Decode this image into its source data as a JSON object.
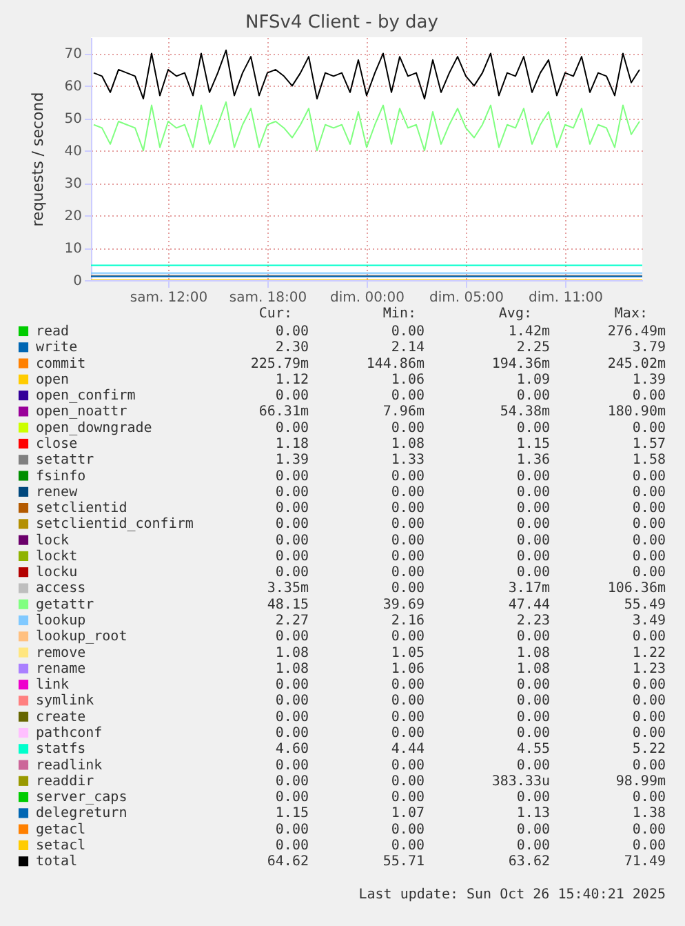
{
  "chart_data": {
    "type": "line",
    "title": "NFSv4 Client - by day",
    "ylabel": "requests / second",
    "xlim": [
      "2025-10-25T05:20",
      "2025-10-26T14:40"
    ],
    "ylim": [
      0,
      75
    ],
    "xticks": [
      {
        "value": "2025-10-25T10:00",
        "label": "sam. 12:00"
      },
      {
        "value": "2025-10-25T16:00",
        "label": "sam. 18:00"
      },
      {
        "value": "2025-10-25T22:00",
        "label": "dim. 00:00"
      },
      {
        "value": "2025-10-26T04:00",
        "label": "dim. 05:00"
      },
      {
        "value": "2025-10-26T10:00",
        "label": "dim. 11:00"
      }
    ],
    "yticks": [
      0,
      10,
      20,
      30,
      40,
      50,
      60,
      70
    ],
    "grid": true,
    "legend": "bottom",
    "x": [
      "2025-10-25T05:30",
      "2025-10-25T06:00",
      "2025-10-25T06:30",
      "2025-10-25T07:00",
      "2025-10-25T07:30",
      "2025-10-25T08:00",
      "2025-10-25T08:30",
      "2025-10-25T09:00",
      "2025-10-25T09:30",
      "2025-10-25T10:00",
      "2025-10-25T10:30",
      "2025-10-25T11:00",
      "2025-10-25T11:30",
      "2025-10-25T12:00",
      "2025-10-25T12:30",
      "2025-10-25T13:00",
      "2025-10-25T13:30",
      "2025-10-25T14:00",
      "2025-10-25T14:30",
      "2025-10-25T15:00",
      "2025-10-25T15:30",
      "2025-10-25T16:00",
      "2025-10-25T16:30",
      "2025-10-25T17:00",
      "2025-10-25T17:30",
      "2025-10-25T18:00",
      "2025-10-25T18:30",
      "2025-10-25T19:00",
      "2025-10-25T19:30",
      "2025-10-25T20:00",
      "2025-10-25T20:30",
      "2025-10-25T21:00",
      "2025-10-25T21:30",
      "2025-10-25T22:00",
      "2025-10-25T22:30",
      "2025-10-25T23:00",
      "2025-10-25T23:30",
      "2025-10-26T00:00",
      "2025-10-26T00:30",
      "2025-10-26T01:00",
      "2025-10-26T01:30",
      "2025-10-26T02:00",
      "2025-10-26T02:30",
      "2025-10-26T03:00",
      "2025-10-26T03:30",
      "2025-10-26T04:00",
      "2025-10-26T04:30",
      "2025-10-26T05:00",
      "2025-10-26T05:30",
      "2025-10-26T06:00",
      "2025-10-26T06:30",
      "2025-10-26T07:00",
      "2025-10-26T07:30",
      "2025-10-26T08:00",
      "2025-10-26T08:30",
      "2025-10-26T09:00",
      "2025-10-26T09:30",
      "2025-10-26T10:00",
      "2025-10-26T10:30",
      "2025-10-26T11:00",
      "2025-10-26T11:30",
      "2025-10-26T12:00",
      "2025-10-26T12:30",
      "2025-10-26T13:00",
      "2025-10-26T13:30",
      "2025-10-26T14:00",
      "2025-10-26T14:30"
    ],
    "series": [
      {
        "name": "read",
        "color": "#00cc00",
        "values": [
          null,
          null,
          null,
          null,
          null,
          null,
          null,
          null,
          null,
          null,
          null,
          null,
          null,
          null,
          null,
          null,
          null,
          null,
          null,
          null,
          null,
          null,
          null,
          null,
          null,
          null,
          null,
          null,
          null,
          null,
          null,
          null,
          null,
          null,
          null,
          null,
          null,
          null,
          null,
          null,
          null,
          null,
          null,
          null,
          null,
          null,
          null,
          null,
          null,
          null,
          null,
          null,
          null,
          null,
          null,
          null,
          null,
          null,
          null,
          null,
          null,
          null,
          null,
          null,
          null,
          null,
          null
        ]
      },
      {
        "name": "write",
        "color": "#0066b3",
        "values": [
          null,
          null,
          null,
          null,
          null,
          null,
          null,
          null,
          null,
          null,
          null,
          null,
          null,
          null,
          null,
          null,
          null,
          null,
          null,
          null,
          null,
          null,
          null,
          null,
          null,
          null,
          null,
          null,
          null,
          null,
          null,
          null,
          null,
          null,
          null,
          null,
          null,
          null,
          null,
          null,
          null,
          null,
          null,
          null,
          null,
          null,
          null,
          null,
          null,
          null,
          null,
          null,
          null,
          null,
          null,
          null,
          null,
          null,
          null,
          null,
          null,
          null,
          null,
          null,
          null,
          null,
          null
        ]
      },
      {
        "name": "commit",
        "color": "#ff8000",
        "values": [
          null,
          null,
          null,
          null,
          null,
          null,
          null,
          null,
          null,
          null,
          null,
          null,
          null,
          null,
          null,
          null,
          null,
          null,
          null,
          null,
          null,
          null,
          null,
          null,
          null,
          null,
          null,
          null,
          null,
          null,
          null,
          null,
          null,
          null,
          null,
          null,
          null,
          null,
          null,
          null,
          null,
          null,
          null,
          null,
          null,
          null,
          null,
          null,
          null,
          null,
          null,
          null,
          null,
          null,
          null,
          null,
          null,
          null,
          null,
          null,
          null,
          null,
          null,
          null,
          null,
          null,
          null
        ]
      },
      {
        "name": "open",
        "color": "#ffcc00",
        "values": [
          null,
          null,
          null,
          null,
          null,
          null,
          null,
          null,
          null,
          null,
          null,
          null,
          null,
          null,
          null,
          null,
          null,
          null,
          null,
          null,
          null,
          null,
          null,
          null,
          null,
          null,
          null,
          null,
          null,
          null,
          null,
          null,
          null,
          null,
          null,
          null,
          null,
          null,
          null,
          null,
          null,
          null,
          null,
          null,
          null,
          null,
          null,
          null,
          null,
          null,
          null,
          null,
          null,
          null,
          null,
          null,
          null,
          null,
          null,
          null,
          null,
          null,
          null,
          null,
          null,
          null,
          null
        ]
      },
      {
        "name": "open_confirm",
        "color": "#330099",
        "values": [
          null,
          null,
          null,
          null,
          null,
          null,
          null,
          null,
          null,
          null,
          null,
          null,
          null,
          null,
          null,
          null,
          null,
          null,
          null,
          null,
          null,
          null,
          null,
          null,
          null,
          null,
          null,
          null,
          null,
          null,
          null,
          null,
          null,
          null,
          null,
          null,
          null,
          null,
          null,
          null,
          null,
          null,
          null,
          null,
          null,
          null,
          null,
          null,
          null,
          null,
          null,
          null,
          null,
          null,
          null,
          null,
          null,
          null,
          null,
          null,
          null,
          null,
          null,
          null,
          null,
          null,
          null
        ]
      },
      {
        "name": "open_noattr",
        "color": "#990099",
        "values": [
          null,
          null,
          null,
          null,
          null,
          null,
          null,
          null,
          null,
          null,
          null,
          null,
          null,
          null,
          null,
          null,
          null,
          null,
          null,
          null,
          null,
          null,
          null,
          null,
          null,
          null,
          null,
          null,
          null,
          null,
          null,
          null,
          null,
          null,
          null,
          null,
          null,
          null,
          null,
          null,
          null,
          null,
          null,
          null,
          null,
          null,
          null,
          null,
          null,
          null,
          null,
          null,
          null,
          null,
          null,
          null,
          null,
          null,
          null,
          null,
          null,
          null,
          null,
          null,
          null,
          null,
          null
        ]
      },
      {
        "name": "open_downgrade",
        "color": "#ccff00",
        "values": [
          null,
          null,
          null,
          null,
          null,
          null,
          null,
          null,
          null,
          null,
          null,
          null,
          null,
          null,
          null,
          null,
          null,
          null,
          null,
          null,
          null,
          null,
          null,
          null,
          null,
          null,
          null,
          null,
          null,
          null,
          null,
          null,
          null,
          null,
          null,
          null,
          null,
          null,
          null,
          null,
          null,
          null,
          null,
          null,
          null,
          null,
          null,
          null,
          null,
          null,
          null,
          null,
          null,
          null,
          null,
          null,
          null,
          null,
          null,
          null,
          null,
          null,
          null,
          null,
          null,
          null,
          null
        ]
      },
      {
        "name": "close",
        "color": "#ff0000",
        "values": [
          null,
          null,
          null,
          null,
          null,
          null,
          null,
          null,
          null,
          null,
          null,
          null,
          null,
          null,
          null,
          null,
          null,
          null,
          null,
          null,
          null,
          null,
          null,
          null,
          null,
          null,
          null,
          null,
          null,
          null,
          null,
          null,
          null,
          null,
          null,
          null,
          null,
          null,
          null,
          null,
          null,
          null,
          null,
          null,
          null,
          null,
          null,
          null,
          null,
          null,
          null,
          null,
          null,
          null,
          null,
          null,
          null,
          null,
          null,
          null,
          null,
          null,
          null,
          null,
          null,
          null,
          null
        ]
      },
      {
        "name": "setattr",
        "color": "#808080",
        "x": [
          "2025-10-25T05:20",
          "2025-10-26T14:40"
        ],
        "values": [
          1.4,
          1.4
        ]
      },
      {
        "name": "fsinfo",
        "color": "#008f00",
        "values": [
          null,
          null,
          null,
          null,
          null,
          null,
          null,
          null,
          null,
          null,
          null,
          null,
          null,
          null,
          null,
          null,
          null,
          null,
          null,
          null,
          null,
          null,
          null,
          null,
          null,
          null,
          null,
          null,
          null,
          null,
          null,
          null,
          null,
          null,
          null,
          null,
          null,
          null,
          null,
          null,
          null,
          null,
          null,
          null,
          null,
          null,
          null,
          null,
          null,
          null,
          null,
          null,
          null,
          null,
          null,
          null,
          null,
          null,
          null,
          null,
          null,
          null,
          null,
          null,
          null,
          null,
          null
        ]
      },
      {
        "name": "renew",
        "color": "#00487d",
        "values": [
          null,
          null,
          null,
          null,
          null,
          null,
          null,
          null,
          null,
          null,
          null,
          null,
          null,
          null,
          null,
          null,
          null,
          null,
          null,
          null,
          null,
          null,
          null,
          null,
          null,
          null,
          null,
          null,
          null,
          null,
          null,
          null,
          null,
          null,
          null,
          null,
          null,
          null,
          null,
          null,
          null,
          null,
          null,
          null,
          null,
          null,
          null,
          null,
          null,
          null,
          null,
          null,
          null,
          null,
          null,
          null,
          null,
          null,
          null,
          null,
          null,
          null,
          null,
          null,
          null,
          null,
          null
        ]
      },
      {
        "name": "setclientid",
        "color": "#b35a00",
        "values": [
          null,
          null,
          null,
          null,
          null,
          null,
          null,
          null,
          null,
          null,
          null,
          null,
          null,
          null,
          null,
          null,
          null,
          null,
          null,
          null,
          null,
          null,
          null,
          null,
          null,
          null,
          null,
          null,
          null,
          null,
          null,
          null,
          null,
          null,
          null,
          null,
          null,
          null,
          null,
          null,
          null,
          null,
          null,
          null,
          null,
          null,
          null,
          null,
          null,
          null,
          null,
          null,
          null,
          null,
          null,
          null,
          null,
          null,
          null,
          null,
          null,
          null,
          null,
          null,
          null,
          null,
          null
        ]
      },
      {
        "name": "setclientid_confirm",
        "color": "#b38f00",
        "values": [
          null,
          null,
          null,
          null,
          null,
          null,
          null,
          null,
          null,
          null,
          null,
          null,
          null,
          null,
          null,
          null,
          null,
          null,
          null,
          null,
          null,
          null,
          null,
          null,
          null,
          null,
          null,
          null,
          null,
          null,
          null,
          null,
          null,
          null,
          null,
          null,
          null,
          null,
          null,
          null,
          null,
          null,
          null,
          null,
          null,
          null,
          null,
          null,
          null,
          null,
          null,
          null,
          null,
          null,
          null,
          null,
          null,
          null,
          null,
          null,
          null,
          null,
          null,
          null,
          null,
          null,
          null
        ]
      },
      {
        "name": "lock",
        "color": "#6b006b",
        "values": [
          null,
          null,
          null,
          null,
          null,
          null,
          null,
          null,
          null,
          null,
          null,
          null,
          null,
          null,
          null,
          null,
          null,
          null,
          null,
          null,
          null,
          null,
          null,
          null,
          null,
          null,
          null,
          null,
          null,
          null,
          null,
          null,
          null,
          null,
          null,
          null,
          null,
          null,
          null,
          null,
          null,
          null,
          null,
          null,
          null,
          null,
          null,
          null,
          null,
          null,
          null,
          null,
          null,
          null,
          null,
          null,
          null,
          null,
          null,
          null,
          null,
          null,
          null,
          null,
          null,
          null,
          null
        ]
      },
      {
        "name": "lockt",
        "color": "#8fb300",
        "values": [
          null,
          null,
          null,
          null,
          null,
          null,
          null,
          null,
          null,
          null,
          null,
          null,
          null,
          null,
          null,
          null,
          null,
          null,
          null,
          null,
          null,
          null,
          null,
          null,
          null,
          null,
          null,
          null,
          null,
          null,
          null,
          null,
          null,
          null,
          null,
          null,
          null,
          null,
          null,
          null,
          null,
          null,
          null,
          null,
          null,
          null,
          null,
          null,
          null,
          null,
          null,
          null,
          null,
          null,
          null,
          null,
          null,
          null,
          null,
          null,
          null,
          null,
          null,
          null,
          null,
          null,
          null
        ]
      },
      {
        "name": "locku",
        "color": "#b30000",
        "values": [
          null,
          null,
          null,
          null,
          null,
          null,
          null,
          null,
          null,
          null,
          null,
          null,
          null,
          null,
          null,
          null,
          null,
          null,
          null,
          null,
          null,
          null,
          null,
          null,
          null,
          null,
          null,
          null,
          null,
          null,
          null,
          null,
          null,
          null,
          null,
          null,
          null,
          null,
          null,
          null,
          null,
          null,
          null,
          null,
          null,
          null,
          null,
          null,
          null,
          null,
          null,
          null,
          null,
          null,
          null,
          null,
          null,
          null,
          null,
          null,
          null,
          null,
          null,
          null,
          null,
          null,
          null
        ]
      },
      {
        "name": "access",
        "color": "#bebebe",
        "values": [
          null,
          null,
          null,
          null,
          null,
          null,
          null,
          null,
          null,
          null,
          null,
          null,
          null,
          null,
          null,
          null,
          null,
          null,
          null,
          null,
          null,
          null,
          null,
          null,
          null,
          null,
          null,
          null,
          null,
          null,
          null,
          null,
          null,
          null,
          null,
          null,
          null,
          null,
          null,
          null,
          null,
          null,
          null,
          null,
          null,
          null,
          null,
          null,
          null,
          null,
          null,
          null,
          null,
          null,
          null,
          null,
          null,
          null,
          null,
          null,
          null,
          null,
          null,
          null,
          null,
          null,
          null
        ]
      },
      {
        "name": "getattr",
        "color": "#80ff80",
        "values": [
          48,
          47,
          42,
          49,
          48,
          47,
          40,
          54,
          41,
          49,
          47,
          48,
          41,
          54,
          42,
          48,
          55,
          41,
          48,
          53,
          41,
          48,
          49,
          47,
          44,
          48,
          53,
          40,
          48,
          47,
          48,
          42,
          52,
          41,
          48,
          54,
          42,
          53,
          47,
          48,
          40,
          52,
          42,
          48,
          53,
          47,
          44,
          48,
          54,
          41,
          48,
          47,
          53,
          42,
          48,
          52,
          41,
          48,
          47,
          53,
          42,
          48,
          47,
          41,
          54,
          45,
          49
        ]
      },
      {
        "name": "lookup",
        "color": "#80c9ff",
        "x": [
          "2025-10-25T05:20",
          "2025-10-26T14:40"
        ],
        "values": [
          2.2,
          2.2
        ]
      },
      {
        "name": "lookup_root",
        "color": "#ffc080",
        "values": [
          null,
          null,
          null,
          null,
          null,
          null,
          null,
          null,
          null,
          null,
          null,
          null,
          null,
          null,
          null,
          null,
          null,
          null,
          null,
          null,
          null,
          null,
          null,
          null,
          null,
          null,
          null,
          null,
          null,
          null,
          null,
          null,
          null,
          null,
          null,
          null,
          null,
          null,
          null,
          null,
          null,
          null,
          null,
          null,
          null,
          null,
          null,
          null,
          null,
          null,
          null,
          null,
          null,
          null,
          null,
          null,
          null,
          null,
          null,
          null,
          null,
          null,
          null,
          null,
          null,
          null,
          null
        ]
      },
      {
        "name": "remove",
        "color": "#ffe680",
        "values": [
          null,
          null,
          null,
          null,
          null,
          null,
          null,
          null,
          null,
          null,
          null,
          null,
          null,
          null,
          null,
          null,
          null,
          null,
          null,
          null,
          null,
          null,
          null,
          null,
          null,
          null,
          null,
          null,
          null,
          null,
          null,
          null,
          null,
          null,
          null,
          null,
          null,
          null,
          null,
          null,
          null,
          null,
          null,
          null,
          null,
          null,
          null,
          null,
          null,
          null,
          null,
          null,
          null,
          null,
          null,
          null,
          null,
          null,
          null,
          null,
          null,
          null,
          null,
          null,
          null,
          null,
          null
        ]
      },
      {
        "name": "rename",
        "color": "#aa80ff",
        "values": [
          null,
          null,
          null,
          null,
          null,
          null,
          null,
          null,
          null,
          null,
          null,
          null,
          null,
          null,
          null,
          null,
          null,
          null,
          null,
          null,
          null,
          null,
          null,
          null,
          null,
          null,
          null,
          null,
          null,
          null,
          null,
          null,
          null,
          null,
          null,
          null,
          null,
          null,
          null,
          null,
          null,
          null,
          null,
          null,
          null,
          null,
          null,
          null,
          null,
          null,
          null,
          null,
          null,
          null,
          null,
          null,
          null,
          null,
          null,
          null,
          null,
          null,
          null,
          null,
          null,
          null,
          null
        ]
      },
      {
        "name": "link",
        "color": "#ee00cc",
        "values": [
          null,
          null,
          null,
          null,
          null,
          null,
          null,
          null,
          null,
          null,
          null,
          null,
          null,
          null,
          null,
          null,
          null,
          null,
          null,
          null,
          null,
          null,
          null,
          null,
          null,
          null,
          null,
          null,
          null,
          null,
          null,
          null,
          null,
          null,
          null,
          null,
          null,
          null,
          null,
          null,
          null,
          null,
          null,
          null,
          null,
          null,
          null,
          null,
          null,
          null,
          null,
          null,
          null,
          null,
          null,
          null,
          null,
          null,
          null,
          null,
          null,
          null,
          null,
          null,
          null,
          null,
          null
        ]
      },
      {
        "name": "symlink",
        "color": "#ff8080",
        "values": [
          null,
          null,
          null,
          null,
          null,
          null,
          null,
          null,
          null,
          null,
          null,
          null,
          null,
          null,
          null,
          null,
          null,
          null,
          null,
          null,
          null,
          null,
          null,
          null,
          null,
          null,
          null,
          null,
          null,
          null,
          null,
          null,
          null,
          null,
          null,
          null,
          null,
          null,
          null,
          null,
          null,
          null,
          null,
          null,
          null,
          null,
          null,
          null,
          null,
          null,
          null,
          null,
          null,
          null,
          null,
          null,
          null,
          null,
          null,
          null,
          null,
          null,
          null,
          null,
          null,
          null,
          null
        ]
      },
      {
        "name": "create",
        "color": "#666600",
        "values": [
          null,
          null,
          null,
          null,
          null,
          null,
          null,
          null,
          null,
          null,
          null,
          null,
          null,
          null,
          null,
          null,
          null,
          null,
          null,
          null,
          null,
          null,
          null,
          null,
          null,
          null,
          null,
          null,
          null,
          null,
          null,
          null,
          null,
          null,
          null,
          null,
          null,
          null,
          null,
          null,
          null,
          null,
          null,
          null,
          null,
          null,
          null,
          null,
          null,
          null,
          null,
          null,
          null,
          null,
          null,
          null,
          null,
          null,
          null,
          null,
          null,
          null,
          null,
          null,
          null,
          null,
          null
        ]
      },
      {
        "name": "pathconf",
        "color": "#ffbfff",
        "values": [
          null,
          null,
          null,
          null,
          null,
          null,
          null,
          null,
          null,
          null,
          null,
          null,
          null,
          null,
          null,
          null,
          null,
          null,
          null,
          null,
          null,
          null,
          null,
          null,
          null,
          null,
          null,
          null,
          null,
          null,
          null,
          null,
          null,
          null,
          null,
          null,
          null,
          null,
          null,
          null,
          null,
          null,
          null,
          null,
          null,
          null,
          null,
          null,
          null,
          null,
          null,
          null,
          null,
          null,
          null,
          null,
          null,
          null,
          null,
          null,
          null,
          null,
          null,
          null,
          null,
          null,
          null
        ]
      },
      {
        "name": "statfs",
        "color": "#00ffcc",
        "x": [
          "2025-10-25T05:20",
          "2025-10-26T14:40"
        ],
        "values": [
          4.6,
          4.6
        ]
      },
      {
        "name": "readlink",
        "color": "#cc6699",
        "values": [
          null,
          null,
          null,
          null,
          null,
          null,
          null,
          null,
          null,
          null,
          null,
          null,
          null,
          null,
          null,
          null,
          null,
          null,
          null,
          null,
          null,
          null,
          null,
          null,
          null,
          null,
          null,
          null,
          null,
          null,
          null,
          null,
          null,
          null,
          null,
          null,
          null,
          null,
          null,
          null,
          null,
          null,
          null,
          null,
          null,
          null,
          null,
          null,
          null,
          null,
          null,
          null,
          null,
          null,
          null,
          null,
          null,
          null,
          null,
          null,
          null,
          null,
          null,
          null,
          null,
          null,
          null
        ]
      },
      {
        "name": "readdir",
        "color": "#999900",
        "values": [
          null,
          null,
          null,
          null,
          null,
          null,
          null,
          null,
          null,
          null,
          null,
          null,
          null,
          null,
          null,
          null,
          null,
          null,
          null,
          null,
          null,
          null,
          null,
          null,
          null,
          null,
          null,
          null,
          null,
          null,
          null,
          null,
          null,
          null,
          null,
          null,
          null,
          null,
          null,
          null,
          null,
          null,
          null,
          null,
          null,
          null,
          null,
          null,
          null,
          null,
          null,
          null,
          null,
          null,
          null,
          null,
          null,
          null,
          null,
          null,
          null,
          null,
          null,
          null,
          null,
          null,
          null
        ]
      },
      {
        "name": "server_caps",
        "color": "#00cc00",
        "values": [
          null,
          null,
          null,
          null,
          null,
          null,
          null,
          null,
          null,
          null,
          null,
          null,
          null,
          null,
          null,
          null,
          null,
          null,
          null,
          null,
          null,
          null,
          null,
          null,
          null,
          null,
          null,
          null,
          null,
          null,
          null,
          null,
          null,
          null,
          null,
          null,
          null,
          null,
          null,
          null,
          null,
          null,
          null,
          null,
          null,
          null,
          null,
          null,
          null,
          null,
          null,
          null,
          null,
          null,
          null,
          null,
          null,
          null,
          null,
          null,
          null,
          null,
          null,
          null,
          null,
          null,
          null
        ]
      },
      {
        "name": "delegreturn",
        "color": "#0066b3",
        "x": [
          "2025-10-25T05:20",
          "2025-10-26T14:40"
        ],
        "values": [
          1.1,
          1.1
        ]
      },
      {
        "name": "getacl",
        "color": "#ff8000",
        "values": [
          null,
          null,
          null,
          null,
          null,
          null,
          null,
          null,
          null,
          null,
          null,
          null,
          null,
          null,
          null,
          null,
          null,
          null,
          null,
          null,
          null,
          null,
          null,
          null,
          null,
          null,
          null,
          null,
          null,
          null,
          null,
          null,
          null,
          null,
          null,
          null,
          null,
          null,
          null,
          null,
          null,
          null,
          null,
          null,
          null,
          null,
          null,
          null,
          null,
          null,
          null,
          null,
          null,
          null,
          null,
          null,
          null,
          null,
          null,
          null,
          null,
          null,
          null,
          null,
          null,
          null,
          null
        ]
      },
      {
        "name": "setacl",
        "color": "#ffcc00",
        "x": [
          "2025-10-25T05:20",
          "2025-10-26T14:40"
        ],
        "values": [
          0,
          0
        ]
      },
      {
        "name": "total",
        "color": "#000000",
        "values": [
          64,
          63,
          58,
          65,
          64,
          63,
          56,
          70,
          57,
          65,
          63,
          64,
          57,
          70,
          58,
          64,
          71,
          57,
          64,
          69,
          57,
          64,
          65,
          63,
          60,
          64,
          69,
          56,
          64,
          63,
          64,
          58,
          68,
          57,
          64,
          70,
          58,
          69,
          63,
          64,
          56,
          68,
          58,
          64,
          69,
          63,
          60,
          64,
          70,
          57,
          64,
          63,
          69,
          58,
          64,
          68,
          57,
          64,
          63,
          69,
          58,
          64,
          63,
          57,
          70,
          61,
          65
        ]
      }
    ],
    "annotations": [
      "Cur:",
      "Min:",
      "Avg:",
      "Max:",
      "0.00",
      "0.00",
      "1.42m",
      "276.49m",
      "2.30",
      "2.14",
      "2.25",
      "3.79",
      "225.79m",
      "144.86m",
      "194.36m",
      "245.02m",
      "1.12",
      "1.06",
      "1.09",
      "1.39",
      "0.00",
      "0.00",
      "0.00",
      "0.00",
      "66.31m",
      "7.96m",
      "54.38m",
      "180.90m",
      "0.00",
      "0.00",
      "0.00",
      "0.00",
      "1.18",
      "1.08",
      "1.15",
      "1.57",
      "1.39",
      "1.33",
      "1.36",
      "1.58",
      "0.00",
      "0.00",
      "0.00",
      "0.00",
      "0.00",
      "0.00",
      "0.00",
      "0.00",
      "0.00",
      "0.00",
      "0.00",
      "0.00",
      "0.00",
      "0.00",
      "0.00",
      "0.00",
      "0.00",
      "0.00",
      "0.00",
      "0.00",
      "0.00",
      "0.00",
      "0.00",
      "0.00",
      "0.00",
      "0.00",
      "0.00",
      "0.00",
      "3.35m",
      "0.00",
      "3.17m",
      "106.36m",
      "48.15",
      "39.69",
      "47.44",
      "55.49",
      "2.27",
      "2.16",
      "2.23",
      "3.49",
      "0.00",
      "0.00",
      "0.00",
      "0.00",
      "1.08",
      "1.05",
      "1.08",
      "1.22",
      "1.08",
      "1.06",
      "1.08",
      "1.23",
      "0.00",
      "0.00",
      "0.00",
      "0.00",
      "0.00",
      "0.00",
      "0.00",
      "0.00",
      "0.00",
      "0.00",
      "0.00",
      "0.00",
      "0.00",
      "0.00",
      "0.00",
      "0.00",
      "4.60",
      "4.44",
      "4.55",
      "5.22",
      "0.00",
      "0.00",
      "0.00",
      "0.00",
      "0.00",
      "0.00",
      "383.33u",
      "98.99m",
      "0.00",
      "0.00",
      "0.00",
      "0.00",
      "1.15",
      "1.07",
      "1.13",
      "1.38",
      "0.00",
      "0.00",
      "0.00",
      "0.00",
      "0.00",
      "0.00",
      "0.00",
      "0.00",
      "64.62",
      "55.71",
      "63.62",
      "71.49",
      "Last update: Sun Oct 26 15:40:21 2025"
    ]
  }
}
